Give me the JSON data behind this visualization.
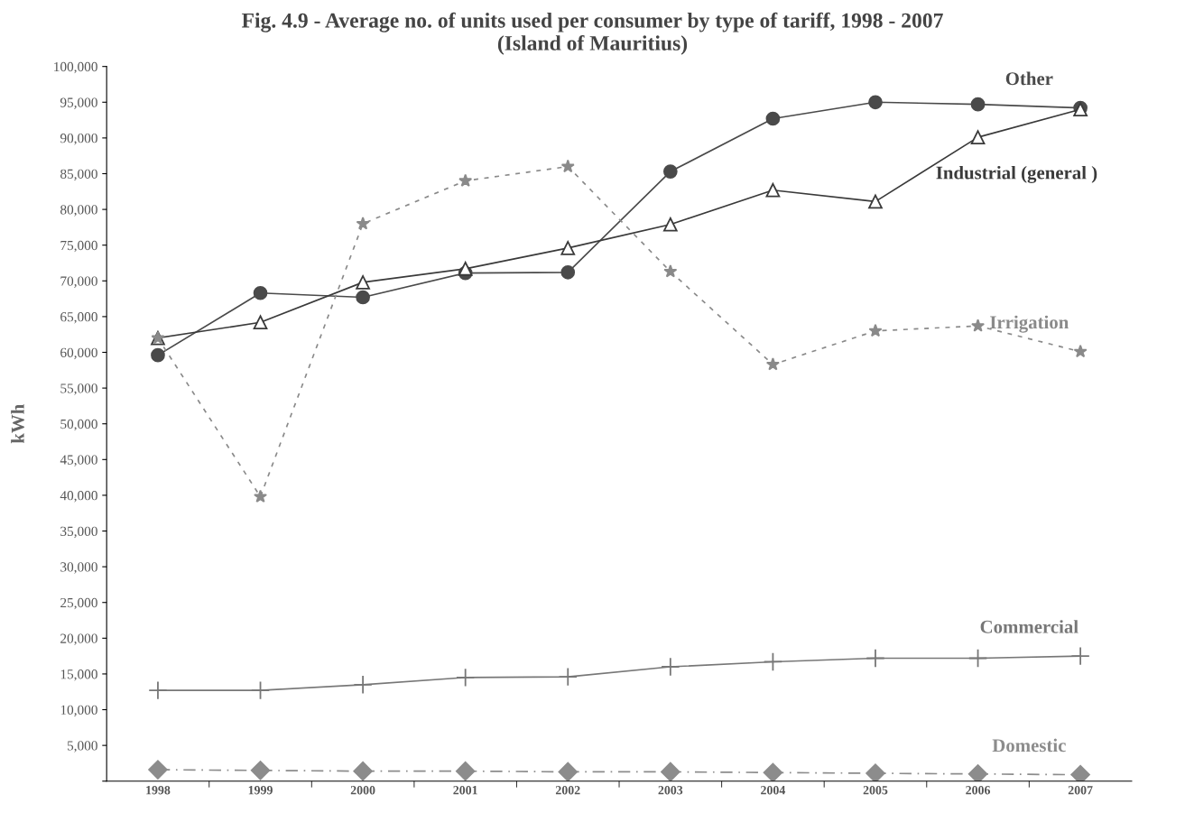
{
  "chart_data": {
    "type": "line",
    "title": "Fig. 4.9 - Average no. of units used per consumer by type of tariff, 1998 - 2007\n(Island of Mauritius)",
    "ylabel": "kWh",
    "categories": [
      "1998",
      "1999",
      "2000",
      "2001",
      "2002",
      "2003",
      "2004",
      "2005",
      "2006",
      "2007"
    ],
    "series": [
      {
        "name": "Other",
        "color": "#4a4a4a",
        "marker": "circle",
        "line_style": "solid",
        "values": [
          59600,
          68300,
          67700,
          71100,
          71200,
          85300,
          92700,
          95000,
          94700,
          94200
        ]
      },
      {
        "name": "Industrial (general )",
        "color": "#3a3a3a",
        "marker": "triangle",
        "line_style": "solid",
        "values": [
          62000,
          64200,
          69800,
          71700,
          74600,
          77900,
          82700,
          81100,
          90100,
          94000
        ]
      },
      {
        "name": "Irrigation",
        "color": "#8a8a8a",
        "marker": "star",
        "line_style": "dotted",
        "values": [
          62000,
          39800,
          78000,
          84000,
          86000,
          71300,
          58300,
          63000,
          63700,
          60100
        ]
      },
      {
        "name": "Commercial",
        "color": "#777777",
        "marker": "cross",
        "line_style": "solid",
        "values": [
          12700,
          12700,
          13500,
          14500,
          14600,
          16000,
          16700,
          17200,
          17200,
          17500
        ]
      },
      {
        "name": "Domestic",
        "color": "#8c8c8c",
        "marker": "diamond",
        "line_style": "dashed",
        "values": [
          1600,
          1500,
          1400,
          1400,
          1300,
          1300,
          1200,
          1100,
          1000,
          900
        ]
      }
    ],
    "ylim": [
      0,
      100000
    ],
    "yticks": [
      {
        "value": 0,
        "label": null
      },
      {
        "value": 5000,
        "label": "5,000"
      },
      {
        "value": 10000,
        "label": "10,000"
      },
      {
        "value": 15000,
        "label": "15,000"
      },
      {
        "value": 20000,
        "label": "20,000"
      },
      {
        "value": 25000,
        "label": "25,000"
      },
      {
        "value": 30000,
        "label": "30,000"
      },
      {
        "value": 35000,
        "label": "35,000"
      },
      {
        "value": 40000,
        "label": "40,000"
      },
      {
        "value": 45000,
        "label": "45,000"
      },
      {
        "value": 50000,
        "label": "50,000"
      },
      {
        "value": 55000,
        "label": "55,000"
      },
      {
        "value": 60000,
        "label": "60,000"
      },
      {
        "value": 65000,
        "label": "65,000"
      },
      {
        "value": 70000,
        "label": "70,000"
      },
      {
        "value": 75000,
        "label": "75,000"
      },
      {
        "value": 80000,
        "label": "80,000"
      },
      {
        "value": 85000,
        "label": "85,000"
      },
      {
        "value": 90000,
        "label": "90,000"
      },
      {
        "value": 95000,
        "label": "95,000"
      },
      {
        "value": 100000,
        "label": "100,000"
      }
    ],
    "grid": false,
    "legend": false
  }
}
